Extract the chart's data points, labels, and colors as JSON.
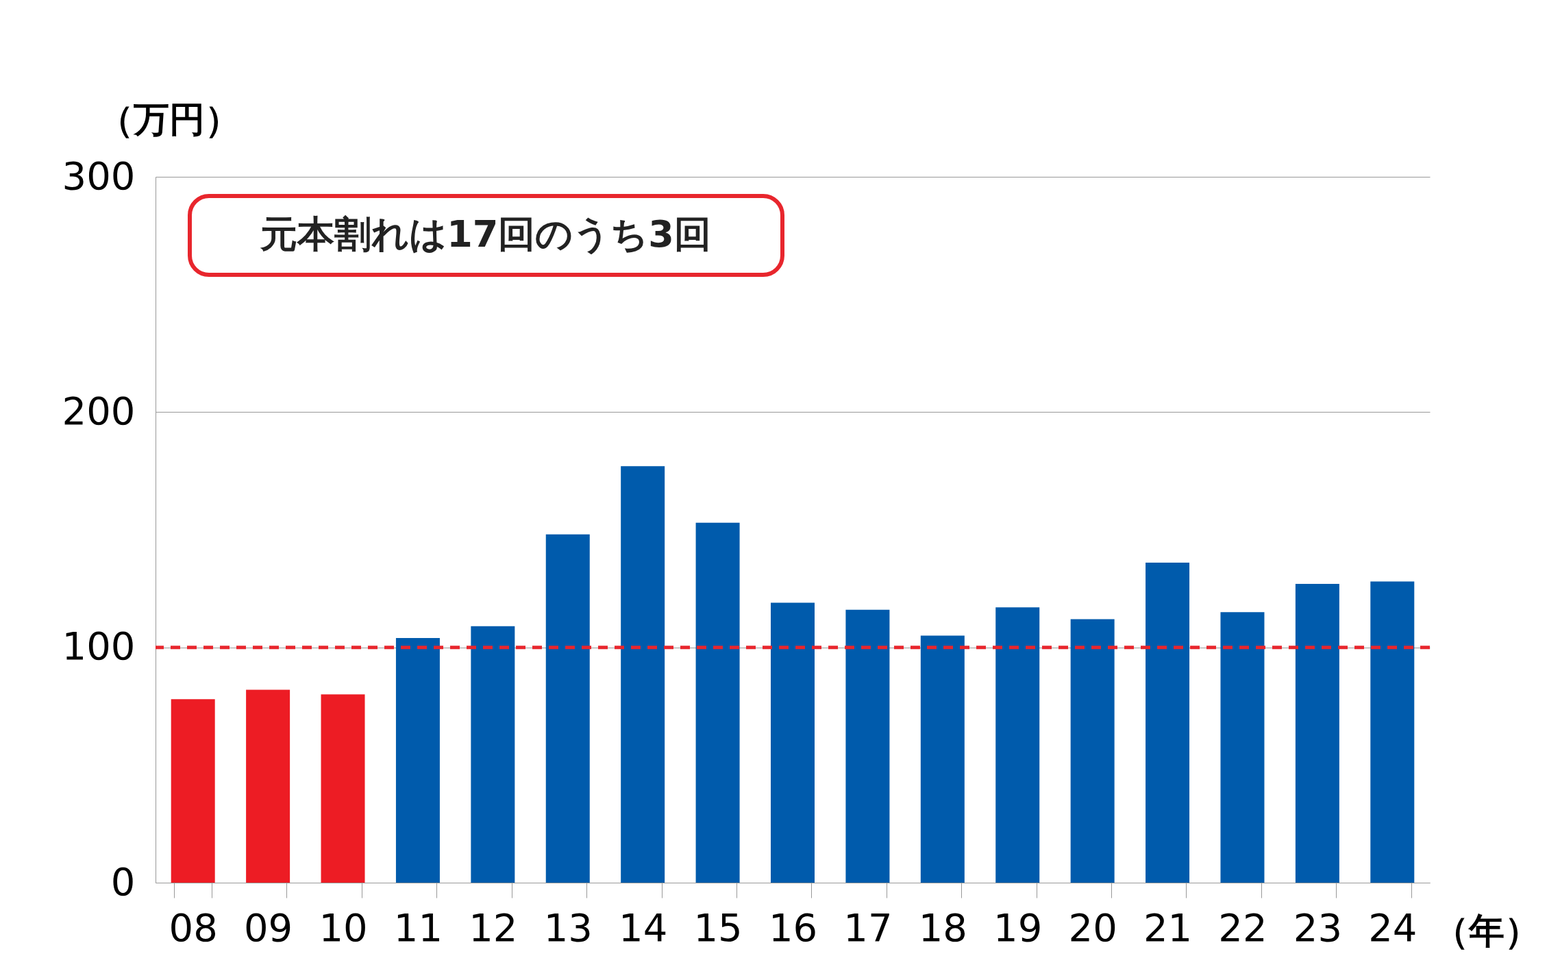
{
  "chart_data": {
    "type": "bar",
    "xlabel": "（年）",
    "ylabel": "（万円）",
    "categories": [
      "08",
      "09",
      "10",
      "11",
      "12",
      "13",
      "14",
      "15",
      "16",
      "17",
      "18",
      "19",
      "20",
      "21",
      "22",
      "23",
      "24"
    ],
    "values": [
      78,
      82,
      80,
      104,
      109,
      148,
      177,
      153,
      119,
      116,
      105,
      117,
      112,
      136,
      115,
      127,
      128
    ],
    "colors": [
      "#ed1c24",
      "#ed1c24",
      "#ed1c24",
      "#005bac",
      "#005bac",
      "#005bac",
      "#005bac",
      "#005bac",
      "#005bac",
      "#005bac",
      "#005bac",
      "#005bac",
      "#005bac",
      "#005bac",
      "#005bac",
      "#005bac",
      "#005bac"
    ],
    "ylim": [
      0,
      300
    ],
    "yticks": [
      0,
      100,
      200,
      300
    ],
    "grid": "y",
    "ref_lines": [
      {
        "axis": "y",
        "value": 100,
        "color": "#e8262d",
        "line_style": "dashed"
      }
    ],
    "annotations": [
      "元本割れは17回のうち3回"
    ]
  }
}
